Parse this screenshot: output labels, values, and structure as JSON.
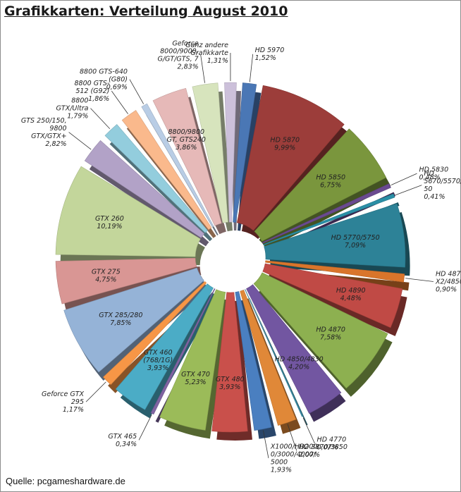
{
  "title": "Grafikkarten: Verteilung August 2010",
  "source": "Quelle: pcgameshardware.de",
  "chart_data": {
    "type": "pie",
    "title": "Grafikkarten: Verteilung August 2010",
    "slices": [
      {
        "name": "HD 5970",
        "value": 1.52,
        "label": "HD 5970\n1,52%",
        "color": "#4a77b5"
      },
      {
        "name": "HD 5870",
        "value": 9.99,
        "label": "HD 5870\n9,99%",
        "color": "#9c3d3a"
      },
      {
        "name": "HD 5850",
        "value": 6.75,
        "label": "HD 5850\n6,75%",
        "color": "#7a963d"
      },
      {
        "name": "HD 5830",
        "value": 0.48,
        "label": "HD 5830\n0,48%",
        "color": "#6a4a90"
      },
      {
        "name": "HD 5670/5570/5550",
        "value": 0.41,
        "label": "HD\n5670/5570/55\n50\n0,41%",
        "color": "#2a8fa6"
      },
      {
        "name": "HD 5770/5750",
        "value": 7.09,
        "label": "HD 5770/5750\n7,09%",
        "color": "#2d8297"
      },
      {
        "name": "HD 4870 X2/4850 X2",
        "value": 0.9,
        "label": "HD 4870\nX2/4850 X2\n0,90%",
        "color": "#d9752b"
      },
      {
        "name": "HD 4890",
        "value": 4.48,
        "label": "HD 4890\n4,48%",
        "color": "#c04a45"
      },
      {
        "name": "HD 4870",
        "value": 7.58,
        "label": "HD 4870\n7,58%",
        "color": "#8db050"
      },
      {
        "name": "HD 4850/4830",
        "value": 4.2,
        "label": "HD 4850/4830\n4,20%",
        "color": "#7256a1"
      },
      {
        "name": "HD 4770",
        "value": 0.07,
        "label": "HD 4770\n0,07%",
        "color": "#3b8fa8"
      },
      {
        "name": "HD 3870/3850",
        "value": 2.07,
        "label": "HD 3870/3850\n2,07%",
        "color": "#e08838"
      },
      {
        "name": "X1000/HD2000/3000/4000/5000",
        "value": 1.93,
        "label": "X1000/HD200\n0/3000/4000/\n5000\n1,93%",
        "color": "#4a7fc0"
      },
      {
        "name": "GTX 480",
        "value": 3.93,
        "label": "GTX 480\n3,93%",
        "color": "#c9504b"
      },
      {
        "name": "GTX 470",
        "value": 5.23,
        "label": "GTX 470\n5,23%",
        "color": "#9bbb59"
      },
      {
        "name": "GTX 465",
        "value": 0.34,
        "label": "GTX 465\n0,34%",
        "color": "#8064a2"
      },
      {
        "name": "GTX 460 (768/1G)",
        "value": 3.93,
        "label": "GTX 460\n(768/1G)\n3,93%",
        "color": "#4bacc6"
      },
      {
        "name": "Geforce GTX 295",
        "value": 1.17,
        "label": "Geforce GTX\n295\n1,17%",
        "color": "#f79646"
      },
      {
        "name": "GTX 285/280",
        "value": 7.85,
        "label": "GTX 285/280\n7,85%",
        "color": "#95b3d7"
      },
      {
        "name": "GTX 275",
        "value": 4.75,
        "label": "GTX 275\n4,75%",
        "color": "#d99694"
      },
      {
        "name": "GTX 260",
        "value": 10.19,
        "label": "GTX 260\n10,19%",
        "color": "#c3d69b"
      },
      {
        "name": "GTS 250/150, 9800 GTX/GTX+",
        "value": 2.82,
        "label": "GTS 250/150,\n9800\nGTX/GTX+\n2,82%",
        "color": "#b2a2c7"
      },
      {
        "name": "8800 GTX/Ultra",
        "value": 1.79,
        "label": "8800\nGTX/Ultra\n1,79%",
        "color": "#93cddd"
      },
      {
        "name": "8800 GTS-512 (G92)",
        "value": 1.86,
        "label": "8800 GTS-\n512 (G92)\n1,86%",
        "color": "#fab98c"
      },
      {
        "name": "8800 GTS-640 (G80)",
        "value": 0.69,
        "label": "8800 GTS-640\n(G80)\n0,69%",
        "color": "#b9cde5"
      },
      {
        "name": "8800/9800 GT, GTS240",
        "value": 3.86,
        "label": "8800/9800\nGT, GTS240\n3,86%",
        "color": "#e6b9b8"
      },
      {
        "name": "Geforce 8000/9000, G/GT/GTS, 7",
        "value": 2.83,
        "label": "Geforce\n8000/9000,\nG/GT/GTS, 7\n2,83%",
        "color": "#d7e4bd"
      },
      {
        "name": "Ganz andere Grafikkarte",
        "value": 1.31,
        "label": "Ganz andere\nGrafikkarte\n1,31%",
        "color": "#ccc0da"
      }
    ]
  }
}
